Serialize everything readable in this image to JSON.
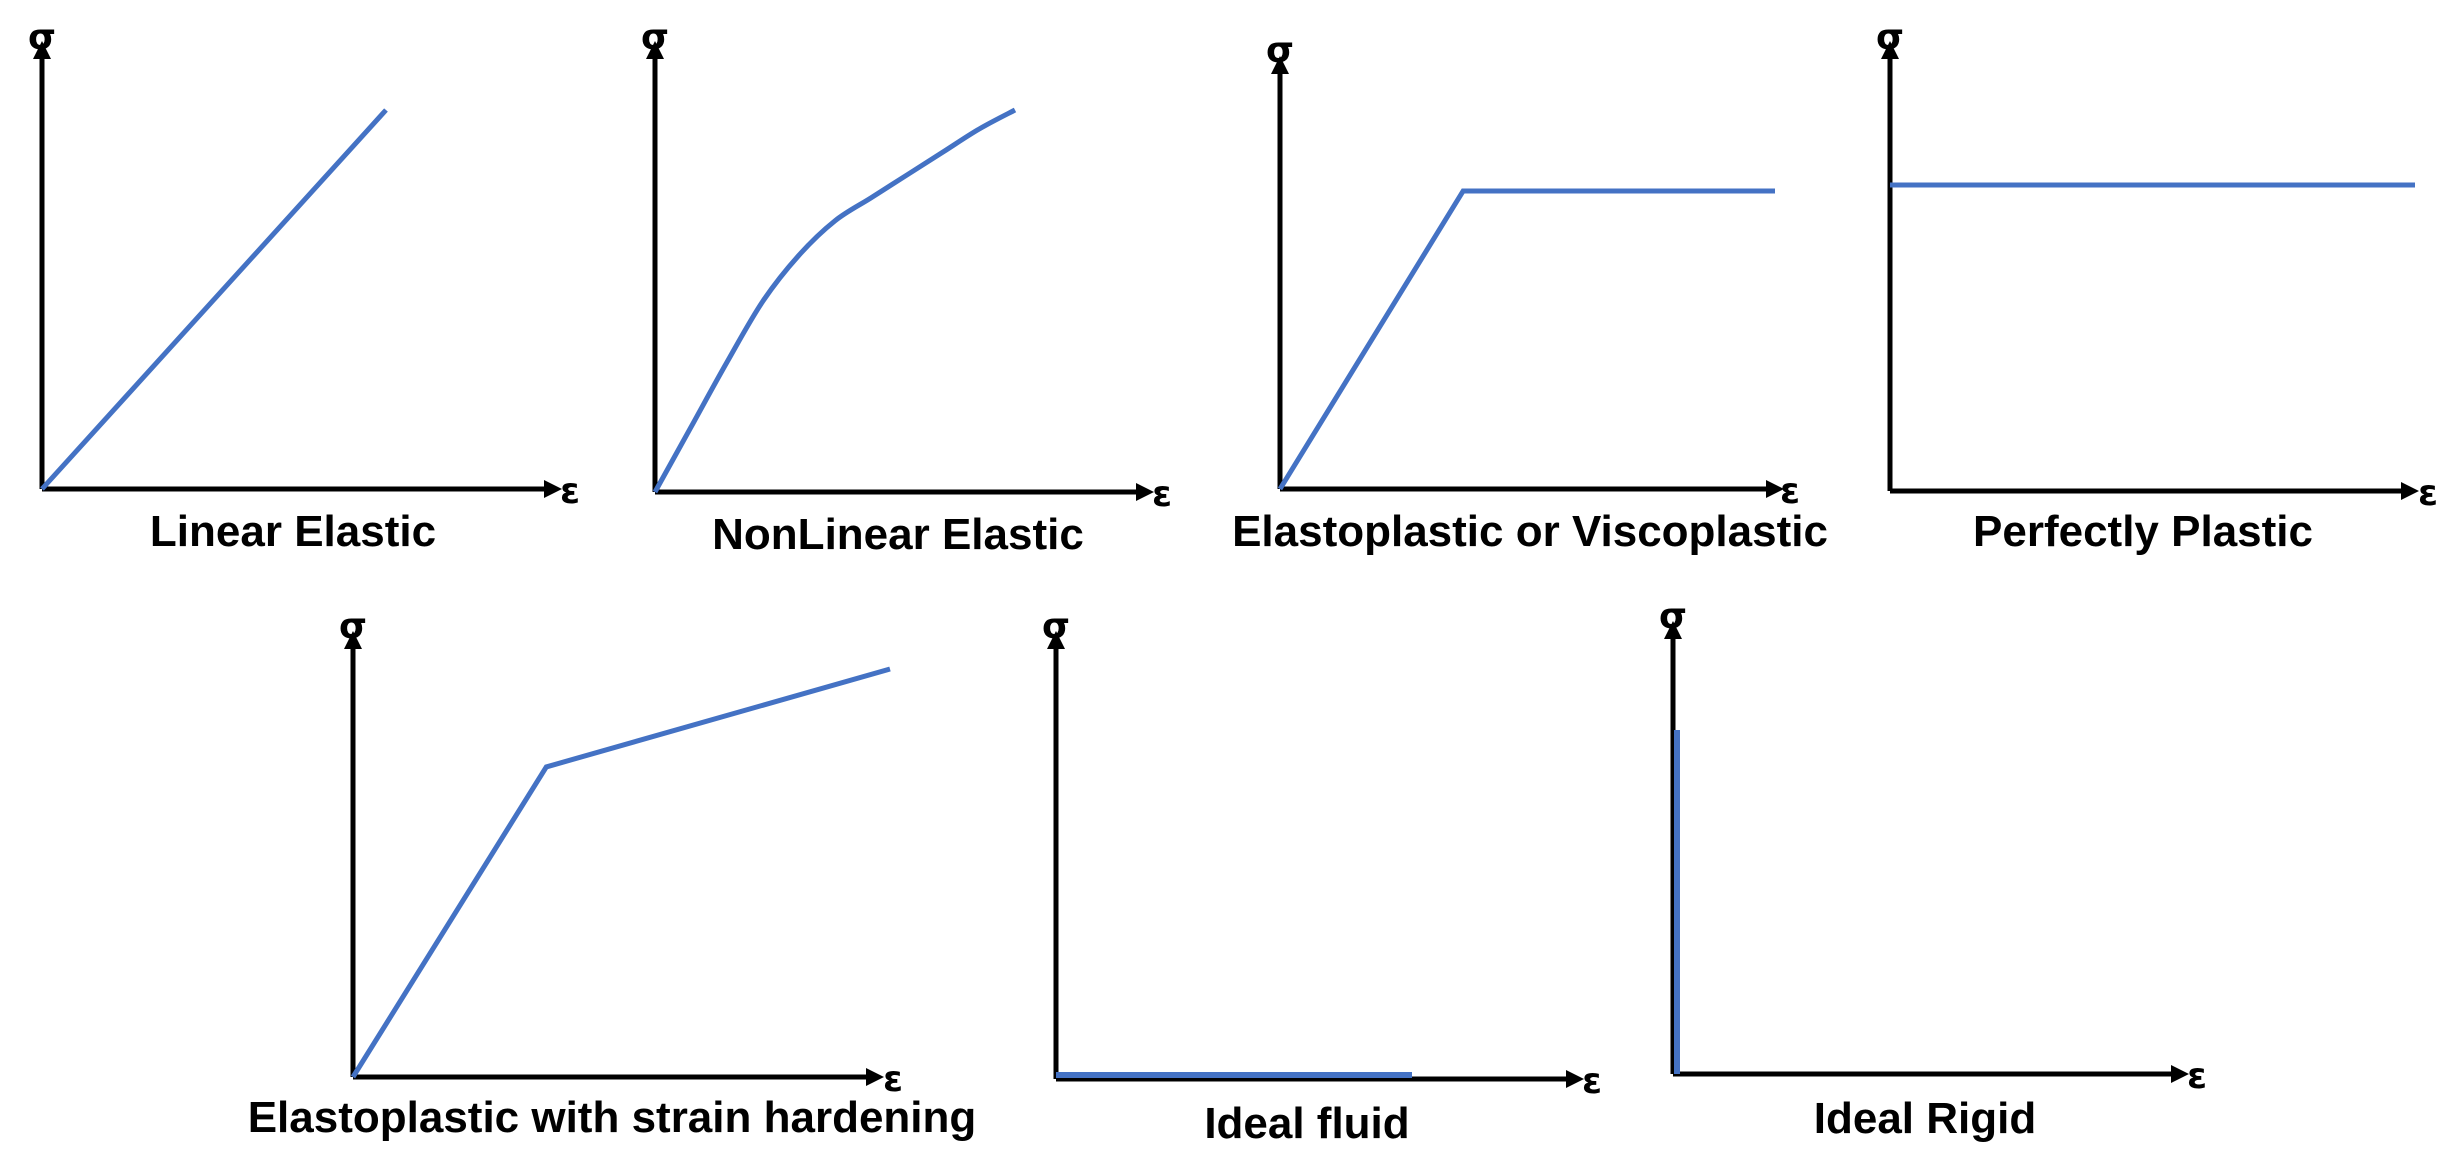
{
  "chart_data": [
    {
      "type": "line",
      "title": "Linear Elastic",
      "xlabel": "ε",
      "ylabel": "σ",
      "series": [
        {
          "x": [
            0,
            1
          ],
          "y": [
            0,
            1
          ],
          "color": "#4472C4"
        }
      ]
    },
    {
      "type": "line",
      "title": "NonLinear Elastic",
      "xlabel": "ε",
      "ylabel": "σ",
      "series": [
        {
          "x": [
            0,
            0.1,
            0.2,
            0.3,
            0.4,
            0.5,
            0.6,
            0.7,
            0.8,
            0.9,
            1.0
          ],
          "y": [
            0,
            0.17,
            0.34,
            0.5,
            0.62,
            0.71,
            0.77,
            0.83,
            0.89,
            0.95,
            1.0
          ],
          "color": "#4472C4"
        }
      ]
    },
    {
      "type": "line",
      "title": "Elastoplastic or Viscoplastic",
      "xlabel": "ε",
      "ylabel": "σ",
      "series": [
        {
          "x": [
            0,
            0.37,
            1.0
          ],
          "y": [
            0,
            1,
            1
          ],
          "color": "#4472C4"
        }
      ]
    },
    {
      "type": "line",
      "title": "Perfectly Plastic",
      "xlabel": "ε",
      "ylabel": "σ",
      "series": [
        {
          "x": [
            0,
            1
          ],
          "y": [
            1,
            1
          ],
          "color": "#4472C4"
        }
      ]
    },
    {
      "type": "line",
      "title": "Elastoplastic with strain hardening",
      "xlabel": "ε",
      "ylabel": "σ",
      "series": [
        {
          "x": [
            0,
            0.36,
            1.0
          ],
          "y": [
            0,
            0.76,
            1.0
          ],
          "color": "#4472C4"
        }
      ]
    },
    {
      "type": "line",
      "title": "Ideal fluid",
      "xlabel": "ε",
      "ylabel": "σ",
      "series": [
        {
          "x": [
            0,
            1
          ],
          "y": [
            0,
            0
          ],
          "color": "#4472C4"
        }
      ]
    },
    {
      "type": "line",
      "title": "Ideal Rigid",
      "xlabel": "ε",
      "ylabel": "σ",
      "series": [
        {
          "x": [
            0,
            0
          ],
          "y": [
            0,
            1
          ],
          "color": "#4472C4"
        }
      ]
    }
  ]
}
